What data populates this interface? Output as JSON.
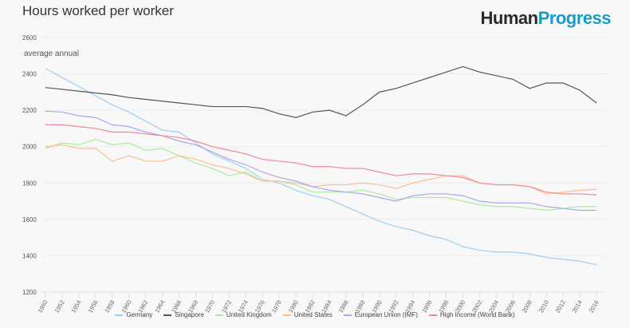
{
  "header": {
    "title": "Hours worked per worker",
    "logo_part1": "Human",
    "logo_part2": "Progress"
  },
  "chart_data": {
    "type": "line",
    "title": "Hours worked per worker",
    "ylabel": "average annual",
    "xlabel": "",
    "ylim": [
      1200,
      2600
    ],
    "yticks": [
      1200,
      1400,
      1600,
      1800,
      2000,
      2200,
      2400,
      2600
    ],
    "xlim": [
      1950,
      2017
    ],
    "xticks": [
      1950,
      1952,
      1954,
      1956,
      1958,
      1960,
      1962,
      1964,
      1966,
      1968,
      1970,
      1972,
      1974,
      1976,
      1978,
      1980,
      1982,
      1984,
      1986,
      1988,
      1990,
      1992,
      1994,
      1996,
      1998,
      2000,
      2002,
      2004,
      2006,
      2008,
      2010,
      2012,
      2014,
      2016
    ],
    "x": [
      1950,
      1952,
      1954,
      1956,
      1958,
      1960,
      1962,
      1964,
      1966,
      1968,
      1970,
      1972,
      1974,
      1976,
      1978,
      1980,
      1982,
      1984,
      1986,
      1988,
      1990,
      1992,
      1994,
      1996,
      1998,
      2000,
      2002,
      2004,
      2006,
      2008,
      2010,
      2012,
      2014,
      2016
    ],
    "grid": true,
    "legend_position": "bottom",
    "series": [
      {
        "name": "Germany",
        "color": "#9fcdf0",
        "values": [
          2430,
          2380,
          2330,
          2280,
          2230,
          2190,
          2140,
          2090,
          2080,
          2020,
          1960,
          1920,
          1880,
          1820,
          1800,
          1760,
          1730,
          1710,
          1670,
          1630,
          1590,
          1560,
          1540,
          1510,
          1490,
          1450,
          1430,
          1420,
          1420,
          1410,
          1390,
          1380,
          1370,
          1350
        ]
      },
      {
        "name": "Singapore",
        "color": "#555555",
        "values": [
          2325,
          2315,
          2305,
          2295,
          2285,
          2270,
          2260,
          2250,
          2240,
          2230,
          2220,
          2220,
          2220,
          2210,
          2180,
          2160,
          2190,
          2200,
          2170,
          2230,
          2300,
          2320,
          2350,
          2380,
          2410,
          2440,
          2410,
          2390,
          2370,
          2320,
          2350,
          2350,
          2310,
          2240
        ]
      },
      {
        "name": "United Kingdom",
        "color": "#a8ec9c",
        "values": [
          1990,
          2020,
          2010,
          2040,
          2010,
          2020,
          1980,
          1990,
          1950,
          1910,
          1880,
          1840,
          1860,
          1810,
          1810,
          1790,
          1750,
          1750,
          1750,
          1760,
          1740,
          1710,
          1720,
          1720,
          1720,
          1700,
          1680,
          1670,
          1670,
          1660,
          1650,
          1660,
          1670,
          1670
        ]
      },
      {
        "name": "United States",
        "color": "#f8c090",
        "values": [
          2000,
          2010,
          1990,
          1990,
          1920,
          1950,
          1920,
          1920,
          1950,
          1930,
          1900,
          1880,
          1850,
          1810,
          1810,
          1800,
          1780,
          1790,
          1790,
          1800,
          1790,
          1770,
          1800,
          1820,
          1840,
          1840,
          1800,
          1790,
          1790,
          1780,
          1740,
          1750,
          1760,
          1765
        ]
      },
      {
        "name": "European Union (IMF)",
        "color": "#a8a8f0",
        "values": [
          2195,
          2190,
          2170,
          2160,
          2120,
          2110,
          2080,
          2060,
          2030,
          2010,
          1970,
          1930,
          1900,
          1860,
          1830,
          1810,
          1780,
          1760,
          1750,
          1740,
          1720,
          1700,
          1730,
          1740,
          1740,
          1730,
          1700,
          1690,
          1690,
          1690,
          1670,
          1660,
          1650,
          1650
        ]
      },
      {
        "name": "High Income (World Bank)",
        "color": "#f08898",
        "values": [
          2120,
          2120,
          2110,
          2100,
          2080,
          2080,
          2070,
          2060,
          2050,
          2030,
          2000,
          1980,
          1960,
          1930,
          1920,
          1910,
          1890,
          1890,
          1880,
          1880,
          1860,
          1840,
          1850,
          1850,
          1840,
          1830,
          1800,
          1790,
          1790,
          1780,
          1750,
          1740,
          1740,
          1735
        ]
      }
    ]
  }
}
